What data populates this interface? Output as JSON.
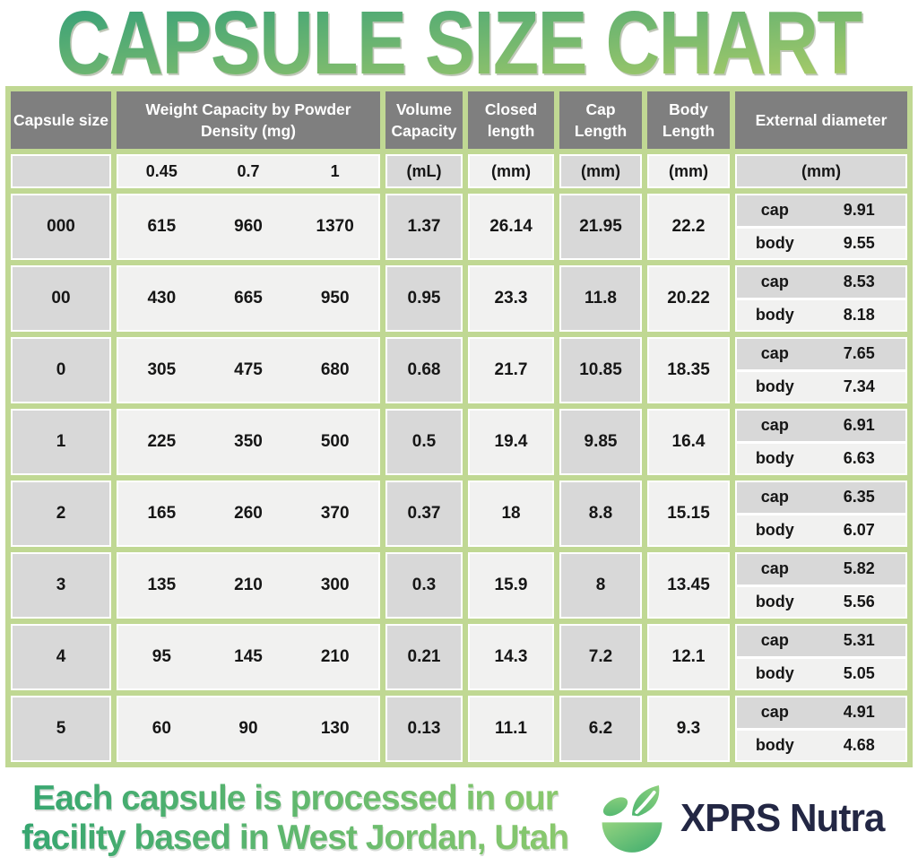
{
  "title": "CAPSULE SIZE CHART",
  "colors": {
    "table_border_green": "#c0d893",
    "header_gray": "#7f7f7f",
    "cell_gray": "#d8d8d8",
    "cell_light": "#f1f1f0",
    "title_gradient_top": "#3ea377",
    "title_gradient_bottom": "#a7cb68",
    "tagline_green_left": "#36a670",
    "tagline_green_right": "#8bc96d",
    "brand_navy": "#232744"
  },
  "chart_data": {
    "type": "table",
    "title": "CAPSULE SIZE CHART",
    "columns": {
      "capsule_size": "Capsule size",
      "weight_capacity": "Weight Capacity by Powder Density (mg)",
      "volume_capacity": "Volume Capacity",
      "closed_length": "Closed length",
      "cap_length": "Cap Length",
      "body_length": "Body Length",
      "external_diameter": "External diameter"
    },
    "units": {
      "weight_densities": [
        "0.45",
        "0.7",
        "1"
      ],
      "volume": "(mL)",
      "closed": "(mm)",
      "cap": "(mm)",
      "body": "(mm)",
      "external": "(mm)"
    },
    "sub_labels": {
      "cap": "cap",
      "body": "body"
    },
    "rows": [
      {
        "size": "000",
        "weights": [
          "615",
          "960",
          "1370"
        ],
        "volume": "1.37",
        "closed_length": "26.14",
        "cap_length": "21.95",
        "body_length": "22.2",
        "external_cap": "9.91",
        "external_body": "9.55"
      },
      {
        "size": "00",
        "weights": [
          "430",
          "665",
          "950"
        ],
        "volume": "0.95",
        "closed_length": "23.3",
        "cap_length": "11.8",
        "body_length": "20.22",
        "external_cap": "8.53",
        "external_body": "8.18"
      },
      {
        "size": "0",
        "weights": [
          "305",
          "475",
          "680"
        ],
        "volume": "0.68",
        "closed_length": "21.7",
        "cap_length": "10.85",
        "body_length": "18.35",
        "external_cap": "7.65",
        "external_body": "7.34"
      },
      {
        "size": "1",
        "weights": [
          "225",
          "350",
          "500"
        ],
        "volume": "0.5",
        "closed_length": "19.4",
        "cap_length": "9.85",
        "body_length": "16.4",
        "external_cap": "6.91",
        "external_body": "6.63"
      },
      {
        "size": "2",
        "weights": [
          "165",
          "260",
          "370"
        ],
        "volume": "0.37",
        "closed_length": "18",
        "cap_length": "8.8",
        "body_length": "15.15",
        "external_cap": "6.35",
        "external_body": "6.07"
      },
      {
        "size": "3",
        "weights": [
          "135",
          "210",
          "300"
        ],
        "volume": "0.3",
        "closed_length": "15.9",
        "cap_length": "8",
        "body_length": "13.45",
        "external_cap": "5.82",
        "external_body": "5.56"
      },
      {
        "size": "4",
        "weights": [
          "95",
          "145",
          "210"
        ],
        "volume": "0.21",
        "closed_length": "14.3",
        "cap_length": "7.2",
        "body_length": "12.1",
        "external_cap": "5.31",
        "external_body": "5.05"
      },
      {
        "size": "5",
        "weights": [
          "60",
          "90",
          "130"
        ],
        "volume": "0.13",
        "closed_length": "11.1",
        "cap_length": "6.2",
        "body_length": "9.3",
        "external_cap": "4.91",
        "external_body": "4.68"
      }
    ]
  },
  "footer": {
    "tagline_line1": "Each capsule is processed in our",
    "tagline_line2": "facility based in West Jordan, Utah",
    "brand": "XPRS Nutra"
  }
}
